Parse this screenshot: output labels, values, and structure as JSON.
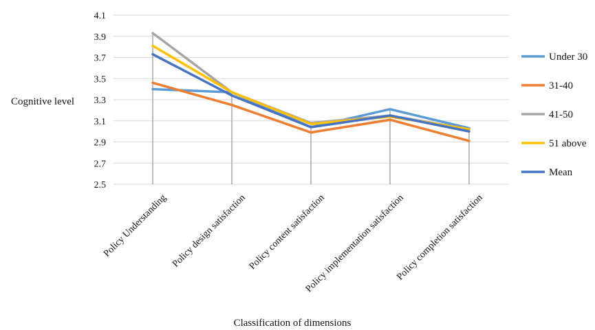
{
  "chart_data": {
    "type": "line",
    "title": "",
    "xlabel": "Classification of dimensions",
    "ylabel": "Cognitive level",
    "ylim": [
      2.5,
      4.1
    ],
    "yticks": [
      "2.5",
      "2.7",
      "2.9",
      "3.1",
      "3.3",
      "3.5",
      "3.7",
      "3.9",
      "4.1"
    ],
    "grid": "horizontal",
    "drop_lines": true,
    "legend_position": "right",
    "categories": [
      "Policy Understanding",
      "Policy design satisfaction",
      "Policy content satisfaction",
      "Policy implementation satisfaction",
      "Policy completion satisfaction"
    ],
    "series": [
      {
        "name": "Under 30",
        "color": "#5B9BD5",
        "values": [
          3.4,
          3.37,
          3.04,
          3.21,
          3.03
        ]
      },
      {
        "name": "31-40",
        "color": "#ED7D31",
        "values": [
          3.46,
          3.25,
          2.99,
          3.11,
          2.91
        ]
      },
      {
        "name": "41-50",
        "color": "#A5A5A5",
        "values": [
          3.93,
          3.37,
          3.08,
          3.15,
          3.02
        ]
      },
      {
        "name": "51 above",
        "color": "#FFC000",
        "values": [
          3.81,
          3.37,
          3.07,
          3.14,
          3.02
        ]
      },
      {
        "name": "Mean",
        "color": "#4472C4",
        "values": [
          3.73,
          3.34,
          3.04,
          3.15,
          3.0
        ]
      }
    ]
  }
}
